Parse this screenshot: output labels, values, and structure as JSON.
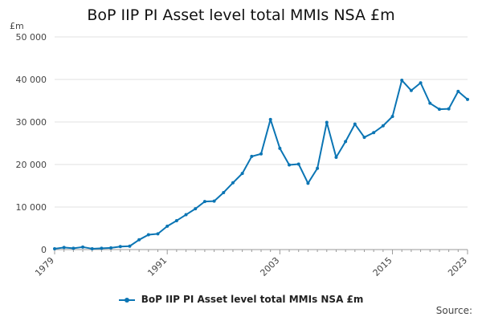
{
  "chart_data": {
    "type": "line",
    "title": "BoP IIP PI Asset level total MMIs NSA £m",
    "unit_label": "£m",
    "source_label": "Source:",
    "ylim": [
      0,
      50000
    ],
    "y_ticks": [
      0,
      10000,
      20000,
      30000,
      40000,
      50000
    ],
    "y_tick_labels": [
      "0",
      "10 000",
      "20 000",
      "30 000",
      "40 000",
      "50 000"
    ],
    "x_ticks": [
      "1979",
      "1991",
      "2003",
      "2015",
      "2023"
    ],
    "grid": true,
    "legend_position": "bottom",
    "color": "#0b75b4",
    "x": [
      1979,
      1980,
      1981,
      1982,
      1983,
      1984,
      1985,
      1986,
      1987,
      1988,
      1989,
      1990,
      1991,
      1992,
      1993,
      1994,
      1995,
      1996,
      1997,
      1998,
      1999,
      2000,
      2001,
      2002,
      2003,
      2004,
      2005,
      2006,
      2007,
      2008,
      2009,
      2010,
      2011,
      2012,
      2013,
      2014,
      2015,
      2016,
      2017,
      2018,
      2019,
      2020,
      2021,
      2022,
      2023
    ],
    "series": [
      {
        "name": "BoP IIP PI Asset level total MMIs NSA £m",
        "values": [
          200,
          500,
          300,
          600,
          200,
          300,
          400,
          700,
          800,
          2300,
          3500,
          3700,
          5500,
          6800,
          8200,
          9600,
          11300,
          11400,
          13400,
          15700,
          17900,
          21900,
          22500,
          30600,
          23800,
          19900,
          20100,
          15600,
          19100,
          29900,
          21700,
          25400,
          29500,
          26400,
          27500,
          29100,
          31300,
          39800,
          37400,
          39200,
          34400,
          33000,
          33100,
          37200,
          35300
        ]
      }
    ]
  }
}
